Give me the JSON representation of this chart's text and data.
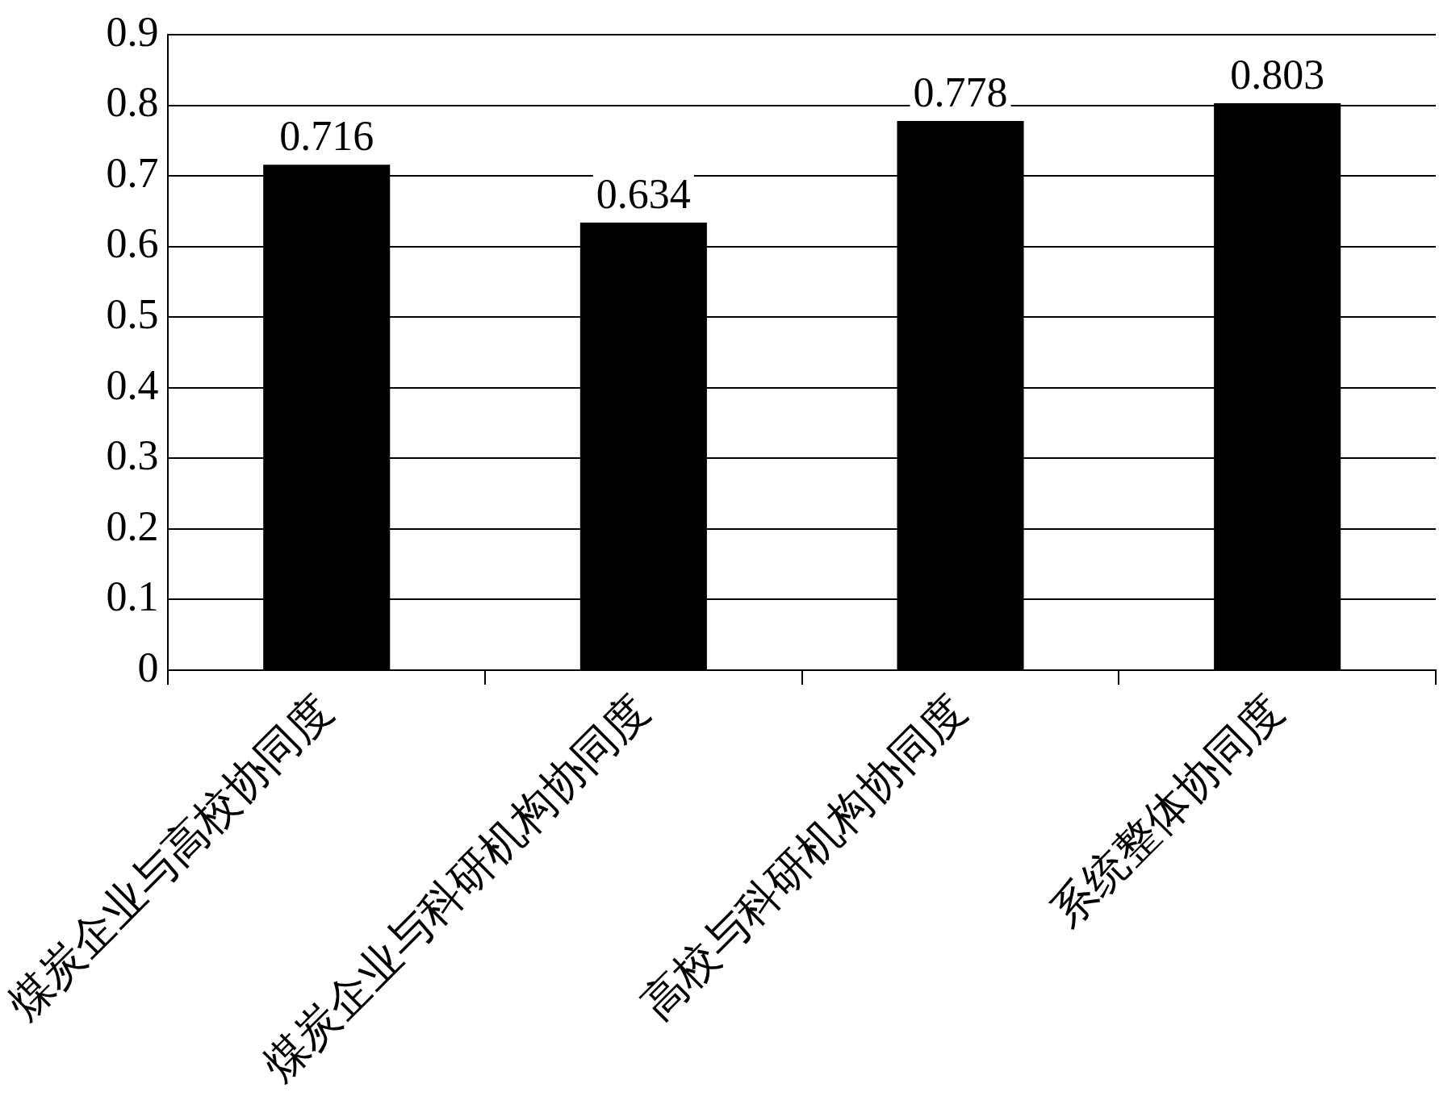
{
  "chart_data": {
    "type": "bar",
    "categories": [
      "煤炭企业与高校协同度",
      "煤炭企业与科研机构协同度",
      "高校与科研机构协同度",
      "系统整体协同度"
    ],
    "values": [
      0.716,
      0.634,
      0.778,
      0.803
    ],
    "color": "#000000",
    "ylim": [
      0,
      0.9
    ],
    "yticks": [
      0,
      0.1,
      0.2,
      0.3,
      0.4,
      0.5,
      0.6,
      0.7,
      0.8,
      0.9
    ],
    "grid": "y",
    "legend": false,
    "data_labels": true
  }
}
